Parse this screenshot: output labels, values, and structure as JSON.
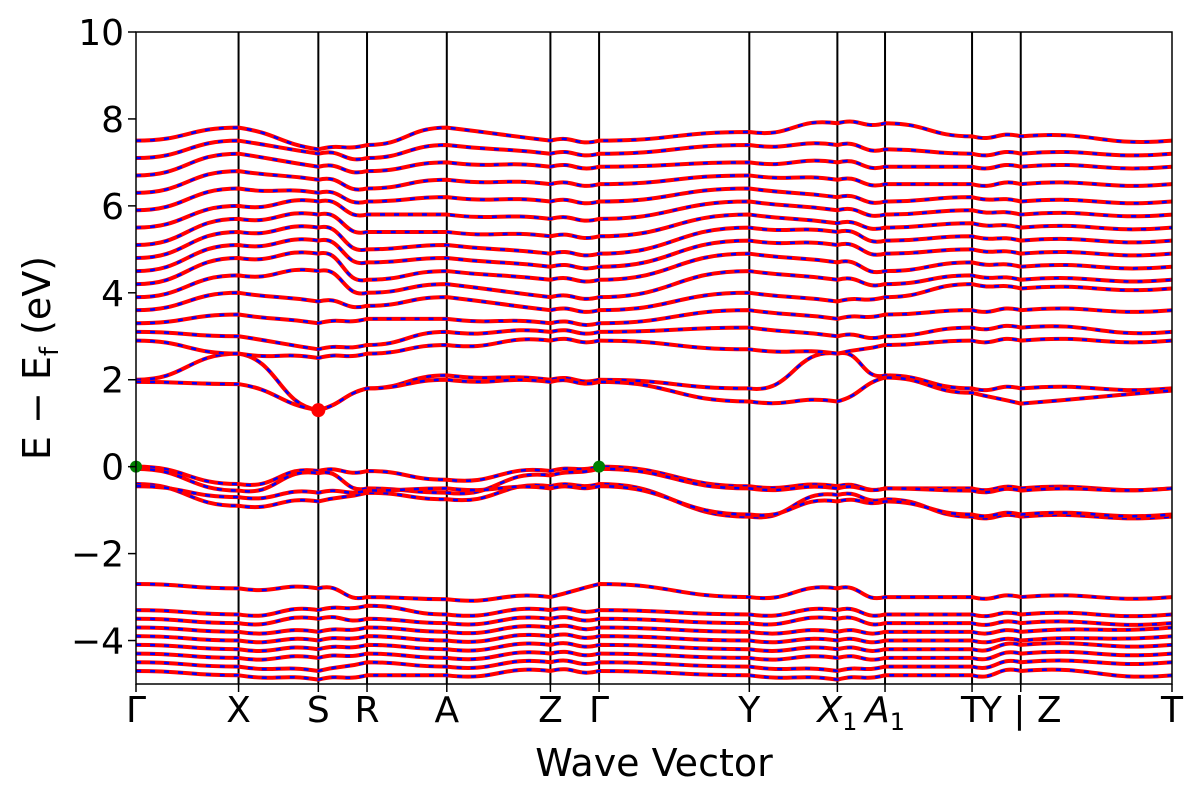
{
  "chart_data": {
    "type": "line",
    "xlabel": "Wave Vector",
    "ylabel": "E − E",
    "ylabel_sub": "f",
    "ylabel_unit": " (eV)",
    "ylim": [
      -5,
      10
    ],
    "yticks": [
      {
        "value": 10,
        "label": "10"
      },
      {
        "value": 8,
        "label": "8"
      },
      {
        "value": 6,
        "label": "6"
      },
      {
        "value": 4,
        "label": "4"
      },
      {
        "value": 2,
        "label": "2"
      },
      {
        "value": 0,
        "label": "0"
      },
      {
        "value": -2,
        "label": "−2"
      },
      {
        "value": -4,
        "label": "−4"
      }
    ],
    "xlim": [
      0,
      1
    ],
    "kpoints": [
      {
        "label": "Γ",
        "x": 0.0
      },
      {
        "label": "X",
        "x": 0.099
      },
      {
        "label": "S",
        "x": 0.176
      },
      {
        "label": "R",
        "x": 0.223
      },
      {
        "label": "A",
        "x": 0.3
      },
      {
        "label": "Z",
        "x": 0.4
      },
      {
        "label": "Γ",
        "x": 0.447
      },
      {
        "label": "Y",
        "x": 0.592
      },
      {
        "label": "X",
        "sub": "1",
        "x": 0.677
      },
      {
        "label": "A",
        "sub": "1",
        "x": 0.723
      },
      {
        "label": "T",
        "x": 0.807
      },
      {
        "label": "Y | Z",
        "x": 0.854
      },
      {
        "label": "T",
        "x": 1.0
      }
    ],
    "grid": false,
    "series_colors": {
      "solid": "#ff0000",
      "dashed": "#0000ff"
    },
    "cbm_marker": {
      "x": 0.176,
      "y": 1.3,
      "color": "#ff0000"
    },
    "vbm_markers": [
      {
        "x": 0.0,
        "y": 0.0,
        "color": "#008000"
      },
      {
        "x": 0.447,
        "y": 0.0,
        "color": "#008000"
      }
    ],
    "bands": [
      [
        2.0,
        2.6,
        1.3,
        1.8,
        2.1,
        2.0,
        2.0,
        1.8,
        2.6,
        2.1,
        1.8,
        1.8,
        1.8
      ],
      [
        1.95,
        1.9,
        1.3,
        1.8,
        2.0,
        1.95,
        1.95,
        1.5,
        1.5,
        2.05,
        1.7,
        1.45,
        1.75
      ],
      [
        0.0,
        -0.4,
        -0.1,
        -0.1,
        -0.3,
        -0.1,
        0.0,
        -0.45,
        -0.45,
        -0.5,
        -0.5,
        -0.5,
        -0.5
      ],
      [
        -0.05,
        -0.55,
        -0.15,
        -0.5,
        -0.6,
        -0.2,
        -0.05,
        -0.5,
        -0.5,
        -0.5,
        -0.55,
        -0.55,
        -0.5
      ],
      [
        -0.4,
        -0.9,
        -0.8,
        -0.6,
        -0.75,
        -0.45,
        -0.4,
        -1.15,
        -0.65,
        -0.75,
        -1.15,
        -1.15,
        -1.15
      ],
      [
        -0.45,
        -0.7,
        -0.6,
        -0.55,
        -0.5,
        -0.5,
        -0.45,
        -1.1,
        -0.8,
        -0.8,
        -1.1,
        -1.1,
        -1.1
      ],
      [
        2.9,
        2.6,
        2.5,
        2.6,
        2.8,
        2.9,
        2.9,
        2.7,
        2.6,
        2.8,
        2.9,
        2.9,
        2.9
      ],
      [
        3.1,
        3.0,
        2.7,
        2.8,
        3.1,
        3.1,
        3.1,
        3.2,
        3.0,
        3.0,
        3.2,
        3.2,
        3.1
      ],
      [
        3.3,
        3.5,
        3.3,
        3.4,
        3.4,
        3.3,
        3.3,
        3.6,
        3.4,
        3.5,
        3.6,
        3.6,
        3.6
      ],
      [
        3.6,
        4.0,
        3.8,
        3.7,
        3.9,
        3.6,
        3.6,
        4.0,
        3.8,
        3.9,
        4.2,
        4.1,
        4.1
      ],
      [
        3.9,
        4.4,
        4.5,
        4.0,
        4.2,
        3.9,
        3.9,
        4.5,
        4.3,
        4.2,
        4.4,
        4.3,
        4.3
      ],
      [
        4.2,
        4.8,
        4.9,
        4.3,
        4.5,
        4.3,
        4.3,
        4.9,
        4.7,
        4.5,
        4.7,
        4.6,
        4.6
      ],
      [
        4.5,
        5.1,
        5.2,
        4.7,
        4.8,
        4.6,
        4.6,
        5.2,
        5.1,
        4.9,
        5.0,
        4.9,
        4.9
      ],
      [
        4.8,
        5.4,
        5.5,
        5.0,
        5.1,
        4.9,
        4.9,
        5.5,
        5.4,
        5.2,
        5.3,
        5.2,
        5.2
      ],
      [
        5.1,
        5.7,
        5.8,
        5.4,
        5.4,
        5.3,
        5.3,
        5.8,
        5.6,
        5.5,
        5.6,
        5.5,
        5.5
      ],
      [
        5.5,
        6.0,
        6.1,
        5.8,
        5.8,
        5.7,
        5.7,
        6.1,
        5.9,
        5.8,
        5.9,
        5.8,
        5.8
      ],
      [
        5.9,
        6.4,
        6.3,
        6.1,
        6.2,
        6.1,
        6.1,
        6.4,
        6.2,
        6.1,
        6.2,
        6.1,
        6.1
      ],
      [
        6.3,
        6.8,
        6.6,
        6.4,
        6.6,
        6.5,
        6.5,
        6.7,
        6.6,
        6.5,
        6.5,
        6.5,
        6.5
      ],
      [
        6.7,
        7.2,
        6.9,
        6.8,
        7.0,
        6.9,
        6.9,
        7.0,
        7.0,
        6.9,
        6.9,
        6.9,
        6.9
      ],
      [
        7.1,
        7.5,
        7.2,
        7.1,
        7.4,
        7.2,
        7.2,
        7.4,
        7.4,
        7.3,
        7.2,
        7.2,
        7.2
      ],
      [
        7.5,
        7.8,
        7.3,
        7.4,
        7.8,
        7.5,
        7.5,
        7.7,
        7.9,
        7.9,
        7.6,
        7.6,
        7.5
      ],
      [
        -2.7,
        -2.8,
        -2.8,
        -3.0,
        -3.05,
        -3.0,
        -2.7,
        -3.0,
        -2.8,
        -3.0,
        -3.0,
        -3.0,
        -3.0
      ],
      [
        -3.3,
        -3.4,
        -3.3,
        -3.2,
        -3.4,
        -3.3,
        -3.3,
        -3.4,
        -3.3,
        -3.4,
        -3.4,
        -3.4,
        -3.4
      ],
      [
        -3.5,
        -3.6,
        -3.5,
        -3.5,
        -3.6,
        -3.5,
        -3.5,
        -3.6,
        -3.5,
        -3.6,
        -3.6,
        -3.6,
        -3.6
      ],
      [
        -3.7,
        -3.8,
        -3.8,
        -3.7,
        -3.8,
        -3.7,
        -3.7,
        -3.8,
        -3.8,
        -3.8,
        -3.8,
        -3.8,
        -3.7
      ],
      [
        -3.9,
        -4.0,
        -4.0,
        -3.9,
        -4.0,
        -3.9,
        -3.9,
        -4.0,
        -4.0,
        -4.0,
        -4.0,
        -4.0,
        -3.9
      ],
      [
        -4.1,
        -4.2,
        -4.2,
        -4.1,
        -4.2,
        -4.1,
        -4.1,
        -4.2,
        -4.2,
        -4.2,
        -4.2,
        -4.1,
        -4.1
      ],
      [
        -4.3,
        -4.4,
        -4.4,
        -4.3,
        -4.4,
        -4.3,
        -4.3,
        -4.4,
        -4.4,
        -4.4,
        -4.4,
        -4.3,
        -4.3
      ],
      [
        -4.5,
        -4.6,
        -4.7,
        -4.5,
        -4.6,
        -4.5,
        -4.5,
        -4.6,
        -4.7,
        -4.6,
        -4.6,
        -4.5,
        -4.5
      ],
      [
        -4.7,
        -4.8,
        -4.9,
        -4.8,
        -4.8,
        -4.7,
        -4.7,
        -4.8,
        -4.9,
        -4.8,
        -4.8,
        -4.7,
        -4.8
      ]
    ]
  }
}
